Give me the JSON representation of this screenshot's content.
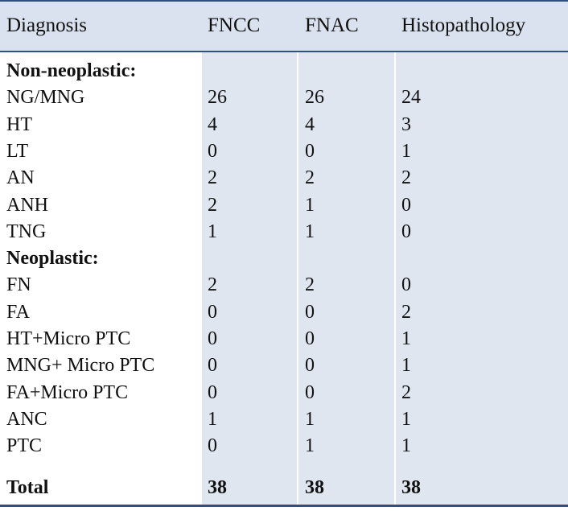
{
  "headers": [
    "Diagnosis",
    "FNCC",
    "FNAC",
    "Histopathology"
  ],
  "sections": [
    {
      "title": "Non-neoplastic:",
      "rows": [
        {
          "label": "NG/MNG",
          "values": [
            "26",
            "26",
            "24"
          ]
        },
        {
          "label": "HT",
          "values": [
            "4",
            "4",
            "3"
          ]
        },
        {
          "label": "LT",
          "values": [
            "0",
            "0",
            "1"
          ]
        },
        {
          "label": "AN",
          "values": [
            "2",
            "2",
            "2"
          ]
        },
        {
          "label": "ANH",
          "values": [
            "2",
            "1",
            "0"
          ]
        },
        {
          "label": "TNG",
          "values": [
            "1",
            "1",
            "0"
          ]
        }
      ]
    },
    {
      "title": "Neoplastic:",
      "rows": [
        {
          "label": "FN",
          "values": [
            "2",
            "2",
            "0"
          ]
        },
        {
          "label": "FA",
          "values": [
            "0",
            "0",
            "2"
          ]
        },
        {
          "label": "HT+Micro PTC",
          "values": [
            "0",
            "0",
            "1"
          ]
        },
        {
          "label": "MNG+ Micro PTC",
          "values": [
            "0",
            "0",
            "1"
          ]
        },
        {
          "label": "FA+Micro PTC",
          "values": [
            "0",
            "0",
            "2"
          ]
        },
        {
          "label": "ANC",
          "values": [
            "1",
            "1",
            "1"
          ]
        },
        {
          "label": "PTC",
          "values": [
            "0",
            "1",
            "1"
          ]
        }
      ]
    }
  ],
  "total": {
    "label": "Total",
    "values": [
      "38",
      "38",
      "38"
    ]
  },
  "colors": {
    "header_bg": "#d9e2ee",
    "band_bg": "#dfe6f0",
    "rule": "#2f4f82"
  }
}
